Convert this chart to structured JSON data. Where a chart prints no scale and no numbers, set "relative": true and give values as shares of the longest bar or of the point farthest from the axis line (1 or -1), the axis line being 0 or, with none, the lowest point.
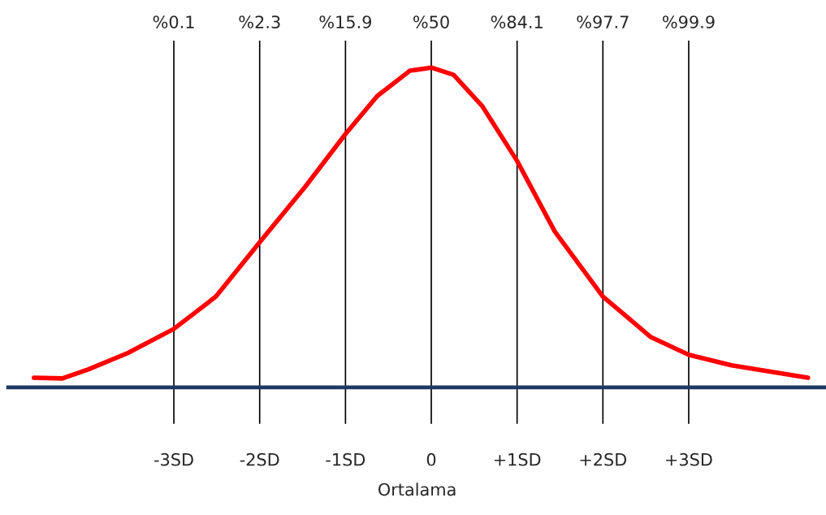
{
  "chart_data": {
    "type": "line",
    "relative": true,
    "xlabel": "Ortalama",
    "x": [
      -4.63,
      -4.3,
      -4.0,
      -3.54,
      -3.0,
      -2.51,
      -2.0,
      -1.47,
      -1.0,
      -0.63,
      -0.25,
      0,
      0.26,
      0.59,
      1.0,
      1.44,
      2.0,
      2.56,
      3.0,
      3.5,
      4.39
    ],
    "series": [
      {
        "color": "#ff0000",
        "values": [
          0.03,
          0.028,
          0.056,
          0.107,
          0.183,
          0.284,
          0.454,
          0.627,
          0.792,
          0.911,
          0.99,
          1,
          0.977,
          0.881,
          0.708,
          0.487,
          0.284,
          0.157,
          0.102,
          0.069,
          0.03
        ]
      }
    ],
    "xlim": [
      -4.93,
      4.6
    ],
    "xticks": [
      {
        "value": -3,
        "label": "-3SD"
      },
      {
        "value": -2,
        "label": "-2SD"
      },
      {
        "value": -1,
        "label": "-1SD"
      },
      0,
      {
        "value": 1,
        "label": "+1SD"
      },
      {
        "value": 2,
        "label": "+2SD"
      },
      {
        "value": 3,
        "label": "+3SD"
      }
    ],
    "ref_lines": [
      {
        "axis": "x",
        "value": -3,
        "color": "#000000"
      },
      {
        "axis": "x",
        "value": -2,
        "color": "#000000"
      },
      {
        "axis": "x",
        "value": -1,
        "color": "#000000"
      },
      {
        "axis": "x",
        "value": 0,
        "color": "#000000"
      },
      {
        "axis": "x",
        "value": 1,
        "color": "#000000"
      },
      {
        "axis": "x",
        "value": 2,
        "color": "#000000"
      },
      {
        "axis": "x",
        "value": 3,
        "color": "#000000"
      }
    ],
    "annotations": [
      "%0.1",
      "%2.3",
      "%15.9",
      "%50",
      "%84.1",
      "%97.7",
      "%99.9"
    ],
    "line_style": "solid",
    "marker": "none"
  }
}
